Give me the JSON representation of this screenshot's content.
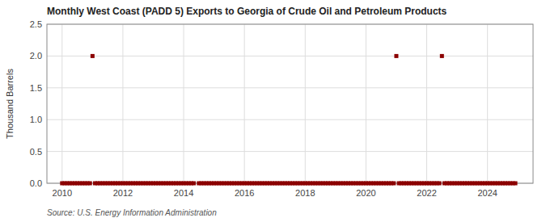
{
  "chart_data": {
    "type": "scatter",
    "title": "Monthly West Coast (PADD 5) Exports to Georgia of Crude Oil and Petroleum Products",
    "ylabel": "Thousand Barrels",
    "source": "Source: U.S. Energy Information Administration",
    "color": "#8b0000",
    "marker": "square",
    "grid": true,
    "xlim": [
      2009.5,
      2025.5
    ],
    "xticks": [
      2010,
      2012,
      2014,
      2016,
      2018,
      2020,
      2022,
      2024
    ],
    "ylim": [
      0,
      2.5
    ],
    "yticks": [
      {
        "value": 0.0,
        "label": "0.0"
      },
      0.5,
      {
        "value": 1.0,
        "label": "1.0"
      },
      1.5,
      {
        "value": 2.0,
        "label": "2.0"
      },
      2.5
    ],
    "x": [
      2010.0,
      2010.083,
      2010.167,
      2010.25,
      2010.333,
      2010.417,
      2010.5,
      2010.583,
      2010.667,
      2010.75,
      2010.833,
      2010.917,
      2011.0,
      2011.083,
      2011.167,
      2011.25,
      2011.333,
      2011.417,
      2011.5,
      2011.583,
      2011.667,
      2011.75,
      2011.833,
      2011.917,
      2012.0,
      2012.083,
      2012.167,
      2012.25,
      2012.333,
      2012.417,
      2012.5,
      2012.583,
      2012.667,
      2012.75,
      2012.833,
      2012.917,
      2013.0,
      2013.083,
      2013.167,
      2013.25,
      2013.333,
      2013.417,
      2013.5,
      2013.583,
      2013.667,
      2013.75,
      2013.833,
      2013.917,
      2014.0,
      2014.083,
      2014.167,
      2014.25,
      2014.333,
      2014.5,
      2014.583,
      2014.667,
      2014.75,
      2014.833,
      2014.917,
      2015.0,
      2015.083,
      2015.167,
      2015.25,
      2015.333,
      2015.417,
      2015.5,
      2015.583,
      2015.667,
      2015.75,
      2015.833,
      2015.917,
      2016.0,
      2016.083,
      2016.167,
      2016.25,
      2016.333,
      2016.417,
      2016.5,
      2016.583,
      2016.667,
      2016.75,
      2016.833,
      2016.917,
      2017.0,
      2017.083,
      2017.167,
      2017.25,
      2017.333,
      2017.417,
      2017.5,
      2017.583,
      2017.667,
      2017.75,
      2017.833,
      2017.917,
      2018.0,
      2018.083,
      2018.167,
      2018.25,
      2018.333,
      2018.417,
      2018.5,
      2018.583,
      2018.667,
      2018.75,
      2018.833,
      2018.917,
      2019.0,
      2019.083,
      2019.167,
      2019.25,
      2019.333,
      2019.417,
      2019.5,
      2019.583,
      2019.667,
      2019.75,
      2019.833,
      2019.917,
      2020.0,
      2020.083,
      2020.167,
      2020.25,
      2020.333,
      2020.417,
      2020.5,
      2020.583,
      2020.667,
      2020.75,
      2020.833,
      2020.917,
      2021.0,
      2021.083,
      2021.167,
      2021.25,
      2021.333,
      2021.417,
      2021.5,
      2021.583,
      2021.667,
      2021.75,
      2021.833,
      2021.917,
      2022.0,
      2022.083,
      2022.167,
      2022.25,
      2022.333,
      2022.417,
      2022.5,
      2022.583,
      2022.667,
      2022.75,
      2022.833,
      2022.917,
      2023.0,
      2023.083,
      2023.167,
      2023.25,
      2023.333,
      2023.417,
      2023.5,
      2023.583,
      2023.667,
      2023.75,
      2023.833,
      2023.917,
      2024.0,
      2024.083,
      2024.167,
      2024.25,
      2024.333,
      2024.417,
      2024.5,
      2024.583,
      2024.667,
      2024.75,
      2024.833,
      2024.917
    ],
    "values": [
      0.0,
      0.0,
      0.0,
      0.0,
      0.0,
      0.0,
      0.0,
      0.0,
      0.0,
      0.0,
      0.0,
      0.0,
      2.0,
      0.0,
      0.0,
      0.0,
      0.0,
      0.0,
      0.0,
      0.0,
      0.0,
      0.0,
      0.0,
      0.0,
      0.0,
      0.0,
      0.0,
      0.0,
      0.0,
      0.0,
      0.0,
      0.0,
      0.0,
      0.0,
      0.0,
      0.0,
      0.0,
      0.0,
      0.0,
      0.0,
      0.0,
      0.0,
      0.0,
      0.0,
      0.0,
      0.0,
      0.0,
      0.0,
      0.0,
      0.0,
      0.0,
      0.0,
      0.0,
      0.0,
      0.0,
      0.0,
      0.0,
      0.0,
      0.0,
      0.0,
      0.0,
      0.0,
      0.0,
      0.0,
      0.0,
      0.0,
      0.0,
      0.0,
      0.0,
      0.0,
      0.0,
      0.0,
      0.0,
      0.0,
      0.0,
      0.0,
      0.0,
      0.0,
      0.0,
      0.0,
      0.0,
      0.0,
      0.0,
      0.0,
      0.0,
      0.0,
      0.0,
      0.0,
      0.0,
      0.0,
      0.0,
      0.0,
      0.0,
      0.0,
      0.0,
      0.0,
      0.0,
      0.0,
      0.0,
      0.0,
      0.0,
      0.0,
      0.0,
      0.0,
      0.0,
      0.0,
      0.0,
      0.0,
      0.0,
      0.0,
      0.0,
      0.0,
      0.0,
      0.0,
      0.0,
      0.0,
      0.0,
      0.0,
      0.0,
      0.0,
      0.0,
      0.0,
      0.0,
      0.0,
      0.0,
      0.0,
      0.0,
      0.0,
      0.0,
      0.0,
      0.0,
      2.0,
      0.0,
      0.0,
      0.0,
      0.0,
      0.0,
      0.0,
      0.0,
      0.0,
      0.0,
      0.0,
      0.0,
      0.0,
      0.0,
      0.0,
      0.0,
      0.0,
      0.0,
      2.0,
      0.0,
      0.0,
      0.0,
      0.0,
      0.0,
      0.0,
      0.0,
      0.0,
      0.0,
      0.0,
      0.0,
      0.0,
      0.0,
      0.0,
      0.0,
      0.0,
      0.0,
      0.0,
      0.0,
      0.0,
      0.0,
      0.0,
      0.0,
      0.0,
      0.0,
      0.0,
      0.0,
      0.0,
      0.0
    ]
  }
}
